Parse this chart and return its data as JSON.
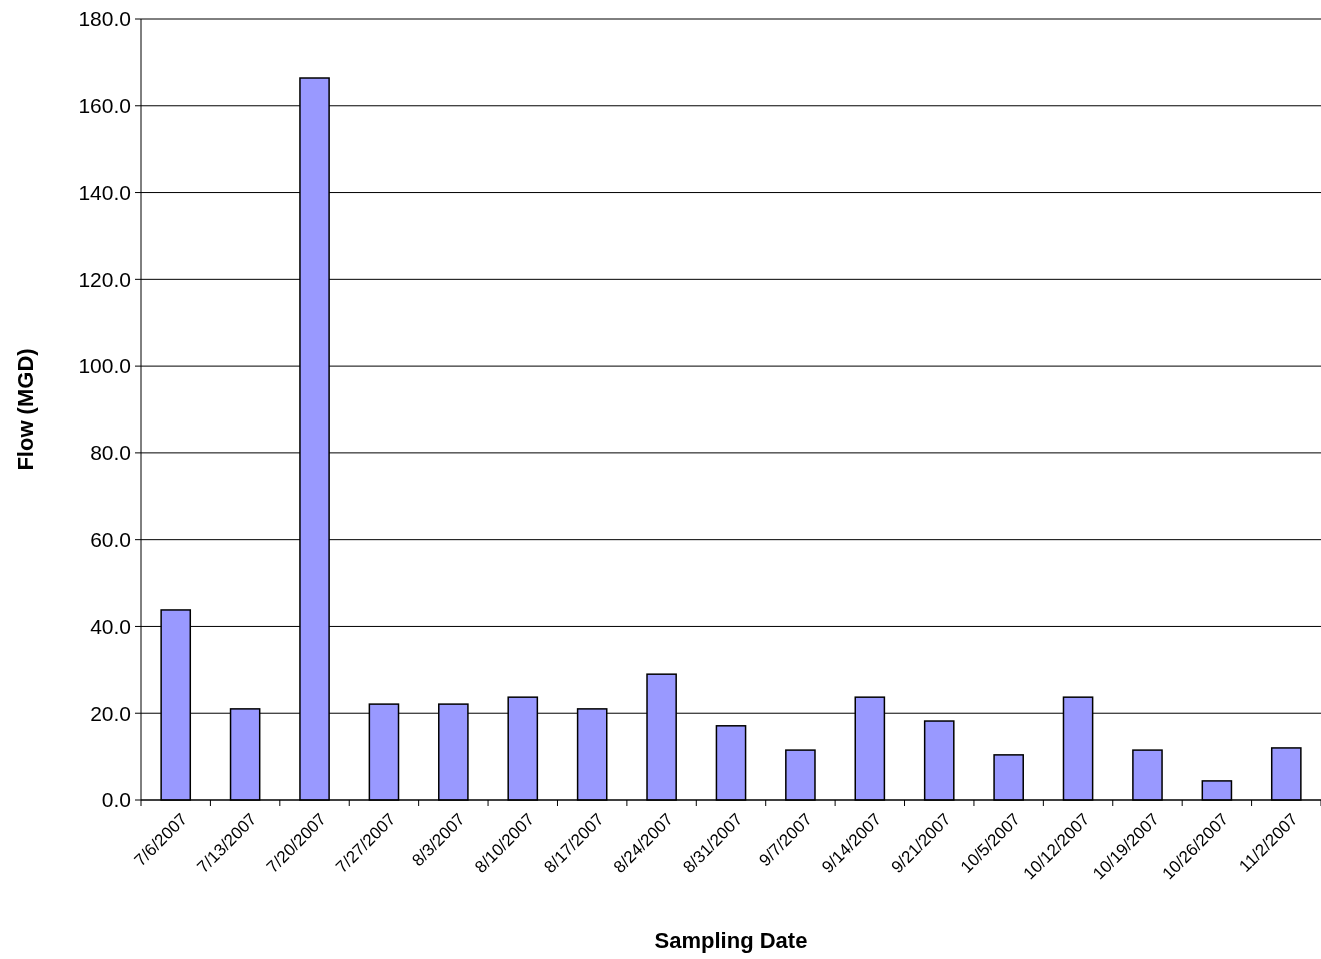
{
  "chart_data": {
    "type": "bar",
    "xlabel": "Sampling Date",
    "ylabel": "Flow (MGD)",
    "categories": [
      "7/6/2007",
      "7/13/2007",
      "7/20/2007",
      "7/27/2007",
      "8/3/2007",
      "8/10/2007",
      "8/17/2007",
      "8/24/2007",
      "8/31/2007",
      "9/7/2007",
      "9/14/2007",
      "9/21/2007",
      "10/5/2007",
      "10/12/2007",
      "10/19/2007",
      "10/26/2007",
      "11/2/2007"
    ],
    "values": [
      43.8,
      21.0,
      166.4,
      22.1,
      22.1,
      23.7,
      21.0,
      29.0,
      17.1,
      11.5,
      23.7,
      18.2,
      10.4,
      23.7,
      11.5,
      4.4,
      12.0
    ],
    "color": "#9999ff",
    "ylim": [
      0,
      180
    ],
    "yticks": [
      {
        "value": 0,
        "label": "0.0"
      },
      {
        "value": 20,
        "label": "20.0"
      },
      {
        "value": 40,
        "label": "40.0"
      },
      {
        "value": 60,
        "label": "60.0"
      },
      {
        "value": 80,
        "label": "80.0"
      },
      {
        "value": 100,
        "label": "100.0"
      },
      {
        "value": 120,
        "label": "120.0"
      },
      {
        "value": 140,
        "label": "140.0"
      },
      {
        "value": 160,
        "label": "160.0"
      },
      {
        "value": 180,
        "label": "180.0"
      }
    ],
    "grid": "y"
  }
}
